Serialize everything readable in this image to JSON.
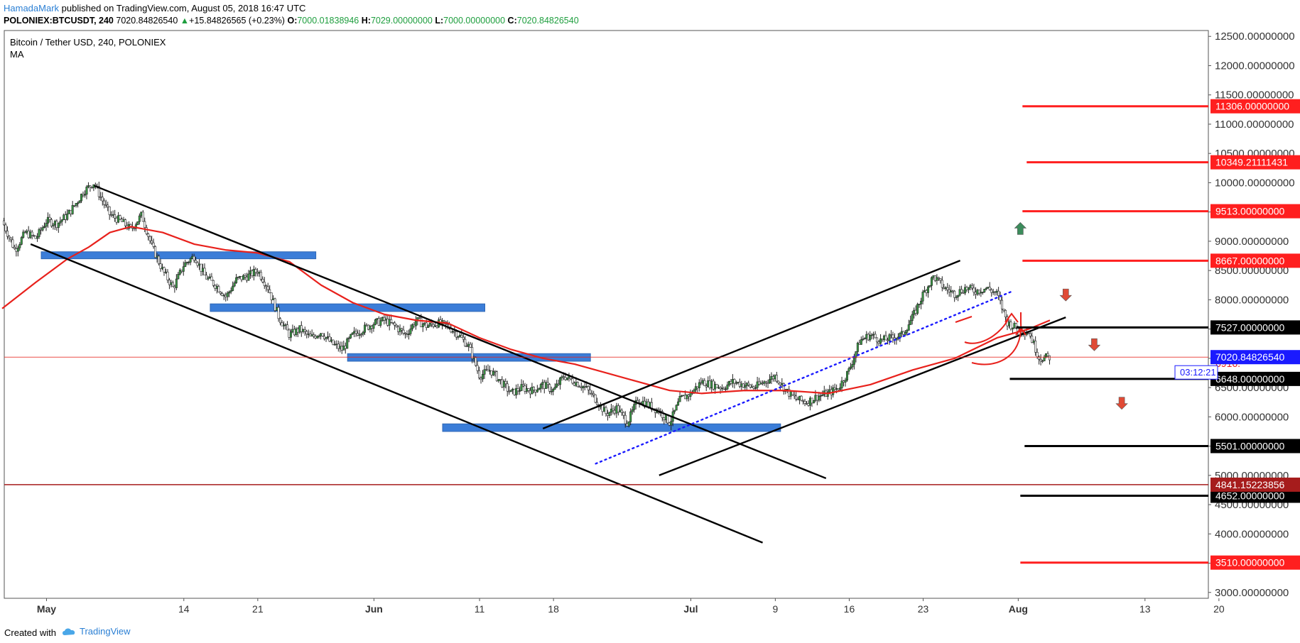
{
  "header": {
    "author": "HamadaMark",
    "published": "published on TradingView.com, August 05, 2018 16:47 UTC",
    "symbol_interval": "POLONIEX:BTCUSDT, 240",
    "last": "7020.84826540",
    "change_arrow": "▲",
    "change": "+15.84826565 (+0.23%)",
    "o_label": "O:",
    "o_value": "7000.01838946",
    "h_label": "H:",
    "h_value": "7029.00000000",
    "l_label": "L:",
    "l_value": "7000.00000000",
    "c_label": "C:",
    "c_value": "7020.84826540"
  },
  "footer": {
    "created": "Created with",
    "brand": "TradingView",
    "brand_icon": "tradingview-cloud-icon"
  },
  "chart_data": {
    "type": "candlestick",
    "title": "Bitcoin / Tether USD, 240, POLONIEX",
    "indicator": "MA",
    "ylim": [
      2900,
      12600
    ],
    "y_ticks": [
      3000,
      3500,
      4000,
      4500,
      5000,
      5500,
      6000,
      6500,
      7000,
      7500,
      8000,
      8500,
      9000,
      9500,
      10000,
      10500,
      11000,
      11500,
      12000,
      12500
    ],
    "y_tick_labels": [
      "3000.00000000",
      "3500.00000000",
      "4000.00000000",
      "4500.00000000",
      "5000.00000000",
      "5500.00000000",
      "6000.00000000",
      "6500.00000000",
      "7000.00000000",
      "7500.00000000",
      "8000.00000000",
      "8500.00000000",
      "9000.00000000",
      "9500.00000000",
      "10000.00000000",
      "10500.00000000",
      "11000.00000000",
      "11500.00000000",
      "12000.00000000",
      "12500.00000000"
    ],
    "x_range_days": [
      -4,
      110
    ],
    "x_note": "day index: 0 = May 1, 2018",
    "x_ticks": [
      {
        "day": 0,
        "label": "May",
        "bold": true
      },
      {
        "day": 13,
        "label": "14",
        "bold": false
      },
      {
        "day": 20,
        "label": "21",
        "bold": false
      },
      {
        "day": 31,
        "label": "Jun",
        "bold": true
      },
      {
        "day": 41,
        "label": "11",
        "bold": false
      },
      {
        "day": 48,
        "label": "18",
        "bold": false
      },
      {
        "day": 61,
        "label": "Jul",
        "bold": true
      },
      {
        "day": 69,
        "label": "9",
        "bold": false
      },
      {
        "day": 76,
        "label": "16",
        "bold": false
      },
      {
        "day": 83,
        "label": "23",
        "bold": false
      },
      {
        "day": 92,
        "label": "Aug",
        "bold": true
      },
      {
        "day": 104,
        "label": "13",
        "bold": false
      },
      {
        "day": 111,
        "label": "20",
        "bold": false
      }
    ],
    "price_path": [
      [
        -4.2,
        9350
      ],
      [
        -3,
        8850
      ],
      [
        -2,
        9150
      ],
      [
        -1,
        9050
      ],
      [
        0,
        9350
      ],
      [
        1,
        9300
      ],
      [
        2,
        9450
      ],
      [
        3,
        9700
      ],
      [
        3.5,
        9850
      ],
      [
        4.5,
        10000
      ],
      [
        5,
        9800
      ],
      [
        6,
        9450
      ],
      [
        7,
        9350
      ],
      [
        8,
        9200
      ],
      [
        9,
        9450
      ],
      [
        10,
        8900
      ],
      [
        11,
        8500
      ],
      [
        12,
        8200
      ],
      [
        13,
        8600
      ],
      [
        14,
        8750
      ],
      [
        15,
        8400
      ],
      [
        16,
        8250
      ],
      [
        17,
        8050
      ],
      [
        18,
        8350
      ],
      [
        19,
        8400
      ],
      [
        20,
        8500
      ],
      [
        21,
        8200
      ],
      [
        22,
        7700
      ],
      [
        23,
        7400
      ],
      [
        24,
        7500
      ],
      [
        25,
        7350
      ],
      [
        26,
        7450
      ],
      [
        27,
        7250
      ],
      [
        28,
        7150
      ],
      [
        29,
        7400
      ],
      [
        30,
        7500
      ],
      [
        31,
        7600
      ],
      [
        32,
        7650
      ],
      [
        33,
        7550
      ],
      [
        34,
        7400
      ],
      [
        35,
        7650
      ],
      [
        36,
        7550
      ],
      [
        37,
        7600
      ],
      [
        38,
        7550
      ],
      [
        39,
        7400
      ],
      [
        40,
        7200
      ],
      [
        41,
        6700
      ],
      [
        42,
        6800
      ],
      [
        43,
        6600
      ],
      [
        44,
        6400
      ],
      [
        45,
        6500
      ],
      [
        46,
        6450
      ],
      [
        47,
        6550
      ],
      [
        48,
        6450
      ],
      [
        49,
        6700
      ],
      [
        50,
        6600
      ],
      [
        51,
        6500
      ],
      [
        52,
        6300
      ],
      [
        53,
        6050
      ],
      [
        54,
        6150
      ],
      [
        55,
        5900
      ],
      [
        56,
        6300
      ],
      [
        57,
        6200
      ],
      [
        58,
        6100
      ],
      [
        59,
        5900
      ],
      [
        60,
        6300
      ],
      [
        61,
        6400
      ],
      [
        62,
        6600
      ],
      [
        63,
        6550
      ],
      [
        64,
        6500
      ],
      [
        65,
        6600
      ],
      [
        66,
        6550
      ],
      [
        67,
        6500
      ],
      [
        68,
        6600
      ],
      [
        69,
        6700
      ],
      [
        70,
        6450
      ],
      [
        71,
        6300
      ],
      [
        72,
        6250
      ],
      [
        73,
        6350
      ],
      [
        74,
        6400
      ],
      [
        75,
        6500
      ],
      [
        76,
        6800
      ],
      [
        77,
        7300
      ],
      [
        78,
        7400
      ],
      [
        79,
        7300
      ],
      [
        80,
        7350
      ],
      [
        81,
        7400
      ],
      [
        82,
        7700
      ],
      [
        83,
        8100
      ],
      [
        84,
        8400
      ],
      [
        85,
        8200
      ],
      [
        86,
        8100
      ],
      [
        87,
        8200
      ],
      [
        88,
        8150
      ],
      [
        89,
        8200
      ],
      [
        90,
        8100
      ],
      [
        91,
        7600
      ],
      [
        92,
        7500
      ],
      [
        93,
        7450
      ],
      [
        94,
        7000
      ],
      [
        95,
        7020
      ]
    ],
    "moving_average": [
      [
        -4.2,
        7850
      ],
      [
        -1,
        8300
      ],
      [
        2,
        8700
      ],
      [
        4,
        8900
      ],
      [
        6,
        9150
      ],
      [
        8,
        9250
      ],
      [
        11,
        9150
      ],
      [
        14,
        8950
      ],
      [
        17,
        8850
      ],
      [
        20,
        8800
      ],
      [
        23,
        8650
      ],
      [
        26,
        8250
      ],
      [
        29,
        7950
      ],
      [
        32,
        7750
      ],
      [
        35,
        7650
      ],
      [
        38,
        7600
      ],
      [
        41,
        7350
      ],
      [
        44,
        7150
      ],
      [
        47,
        7000
      ],
      [
        50,
        6900
      ],
      [
        53,
        6750
      ],
      [
        56,
        6600
      ],
      [
        59,
        6450
      ],
      [
        62,
        6400
      ],
      [
        66,
        6450
      ],
      [
        70,
        6450
      ],
      [
        74,
        6400
      ],
      [
        78,
        6550
      ],
      [
        82,
        6800
      ],
      [
        86,
        7000
      ],
      [
        90,
        7350
      ],
      [
        93,
        7500
      ],
      [
        95,
        7650
      ]
    ],
    "horizontal_levels": [
      {
        "label": "11306.00000000",
        "price": 11306,
        "color": "#ff1f1f",
        "bg": "#ff1f1f"
      },
      {
        "label": "10349.21111431",
        "price": 10349,
        "color": "#ff1f1f",
        "bg": "#ff1f1f"
      },
      {
        "label": "9513.00000000",
        "price": 9513,
        "color": "#ff1f1f",
        "bg": "#ff1f1f"
      },
      {
        "label": "8667.00000000",
        "price": 8667,
        "color": "#ff1f1f",
        "bg": "#ff1f1f"
      },
      {
        "label": "7527.00000000",
        "price": 7527,
        "color": "#000000",
        "bg": "#000000"
      },
      {
        "label": "6648.00000000",
        "price": 6648,
        "color": "#000000",
        "bg": "#000000"
      },
      {
        "label": "5501.00000000",
        "price": 5501,
        "color": "#000000",
        "bg": "#000000"
      },
      {
        "label": "4652.00000000",
        "price": 4652,
        "color": "#000000",
        "bg": "#000000"
      },
      {
        "label": "3510.00000000",
        "price": 3510,
        "color": "#ff1f1f",
        "bg": "#ff1f1f"
      }
    ],
    "support_line": {
      "label": "4841.15223856",
      "price": 4841,
      "color": "#a61c1c"
    },
    "current_price": {
      "label": "7020.84826540",
      "price": 7020,
      "countdown": "03:12:21",
      "color": "#1a1aff"
    },
    "hidden_label_fragment": "6916.",
    "zones": [
      {
        "day_start": -0.5,
        "day_end": 25.5,
        "low": 8700,
        "high": 8820
      },
      {
        "day_start": 15.5,
        "day_end": 41.5,
        "low": 7800,
        "high": 7930
      },
      {
        "day_start": 28.5,
        "day_end": 51.5,
        "low": 6950,
        "high": 7080
      },
      {
        "day_start": 37.5,
        "day_end": 69.5,
        "low": 5750,
        "high": 5880
      }
    ],
    "trend_lines": [
      {
        "from": [
          -1.5,
          8950
        ],
        "to": [
          67.8,
          3850
        ],
        "color": "#000000"
      },
      {
        "from": [
          4.5,
          9950
        ],
        "to": [
          73.8,
          4950
        ],
        "color": "#000000"
      },
      {
        "from": [
          47,
          5800
        ],
        "to": [
          86.5,
          8670
        ],
        "color": "#000000"
      },
      {
        "from": [
          58,
          5000
        ],
        "to": [
          96.5,
          7700
        ],
        "color": "#000000"
      }
    ],
    "dotted_line": {
      "from": [
        52,
        5200
      ],
      "to": [
        91.5,
        8150
      ],
      "color": "#1a1aff"
    },
    "arrows": [
      {
        "day": 92.2,
        "price": 9200,
        "dir": "up",
        "color": "#3c8c5c"
      },
      {
        "day": 96.5,
        "price": 8100,
        "dir": "down",
        "color": "#e04a35"
      },
      {
        "day": 99.2,
        "price": 7250,
        "dir": "down",
        "color": "#e04a35"
      },
      {
        "day": 101.8,
        "price": 6250,
        "dir": "down",
        "color": "#e04a35"
      }
    ]
  }
}
